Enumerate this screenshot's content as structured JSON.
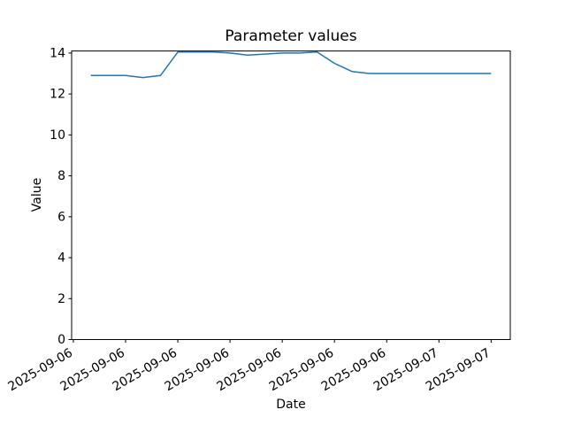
{
  "figure": {
    "background": "#ffffff"
  },
  "chart_data": {
    "type": "line",
    "title": "Parameter values",
    "xlabel": "Date",
    "ylabel": "Value",
    "grid": false,
    "legend": null,
    "line_color": "#1f77b4",
    "spine_color": "#000000",
    "text_color": "#000000",
    "x": [
      4,
      5,
      6,
      7,
      8,
      9,
      10,
      11,
      12,
      13,
      14,
      15,
      16,
      17,
      18,
      19,
      20,
      21,
      22,
      23,
      24,
      25,
      26,
      27
    ],
    "values": [
      12.9,
      12.9,
      12.9,
      12.8,
      12.9,
      14.05,
      14.05,
      14.05,
      14.0,
      13.9,
      13.95,
      14.0,
      14.0,
      14.05,
      13.5,
      13.1,
      13.0,
      13.0,
      13.0,
      13.0,
      13.0,
      13.0,
      13.0,
      13.0
    ],
    "xlim": [
      2.9,
      28.1
    ],
    "ylim": [
      0,
      14.1
    ],
    "yticks": {
      "values": [
        0,
        2,
        4,
        6,
        8,
        10,
        12,
        14
      ],
      "labels": [
        "0",
        "2",
        "4",
        "6",
        "8",
        "10",
        "12",
        "14"
      ]
    },
    "xticks": {
      "values": [
        3,
        6,
        9,
        12,
        15,
        18,
        21,
        24,
        27
      ],
      "labels": [
        "2025-09-06",
        "2025-09-06",
        "2025-09-06",
        "2025-09-06",
        "2025-09-06",
        "2025-09-06",
        "2025-09-06",
        "2025-09-07",
        "2025-09-07"
      ],
      "rotation_deg": 30
    }
  }
}
